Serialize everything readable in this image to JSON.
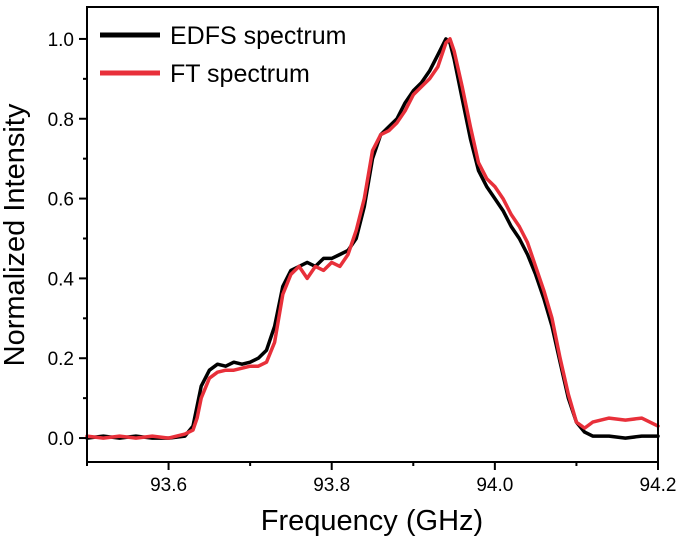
{
  "chart_data": {
    "type": "line",
    "title": "",
    "xlabel": "Frequency (GHz)",
    "ylabel": "Normalized Intensity",
    "xlim": [
      93.5,
      94.2
    ],
    "ylim": [
      -0.06,
      1.08
    ],
    "x_ticks": [
      93.6,
      93.8,
      94.0,
      94.2
    ],
    "x_tick_labels": [
      "93.6",
      "93.8",
      "94.0",
      "94.2"
    ],
    "y_ticks": [
      0.0,
      0.2,
      0.4,
      0.6,
      0.8,
      1.0
    ],
    "y_tick_labels": [
      "0.0",
      "0.2",
      "0.4",
      "0.6",
      "0.8",
      "1.0"
    ],
    "grid": false,
    "legend_position": "top-left",
    "series": [
      {
        "name": "EDFS spectrum",
        "color": "#000000",
        "x": [
          93.5,
          93.52,
          93.54,
          93.56,
          93.58,
          93.6,
          93.62,
          93.63,
          93.635,
          93.64,
          93.65,
          93.66,
          93.67,
          93.68,
          93.69,
          93.7,
          93.71,
          93.72,
          93.73,
          93.74,
          93.75,
          93.76,
          93.77,
          93.78,
          93.79,
          93.8,
          93.81,
          93.82,
          93.83,
          93.84,
          93.85,
          93.86,
          93.87,
          93.88,
          93.89,
          93.9,
          93.91,
          93.92,
          93.93,
          93.94,
          93.945,
          93.95,
          93.96,
          93.97,
          93.98,
          93.99,
          94.0,
          94.01,
          94.02,
          94.03,
          94.04,
          94.05,
          94.06,
          94.07,
          94.08,
          94.09,
          94.1,
          94.11,
          94.12,
          94.14,
          94.16,
          94.18,
          94.2
        ],
        "values": [
          0.0,
          0.005,
          0.0,
          0.005,
          0.0,
          0.0,
          0.005,
          0.03,
          0.08,
          0.13,
          0.17,
          0.185,
          0.18,
          0.19,
          0.185,
          0.19,
          0.2,
          0.22,
          0.28,
          0.38,
          0.42,
          0.43,
          0.44,
          0.43,
          0.45,
          0.45,
          0.46,
          0.47,
          0.5,
          0.58,
          0.7,
          0.76,
          0.78,
          0.8,
          0.84,
          0.87,
          0.89,
          0.92,
          0.96,
          1.0,
          0.99,
          0.95,
          0.85,
          0.75,
          0.67,
          0.63,
          0.6,
          0.57,
          0.53,
          0.5,
          0.46,
          0.41,
          0.35,
          0.28,
          0.19,
          0.1,
          0.04,
          0.015,
          0.005,
          0.005,
          0.0,
          0.005,
          0.005
        ]
      },
      {
        "name": "FT spectrum",
        "color": "#e8303a",
        "x": [
          93.5,
          93.52,
          93.54,
          93.56,
          93.58,
          93.6,
          93.62,
          93.63,
          93.635,
          93.64,
          93.65,
          93.66,
          93.67,
          93.68,
          93.69,
          93.7,
          93.71,
          93.72,
          93.73,
          93.74,
          93.75,
          93.76,
          93.77,
          93.78,
          93.79,
          93.8,
          93.81,
          93.82,
          93.83,
          93.84,
          93.85,
          93.86,
          93.87,
          93.88,
          93.89,
          93.9,
          93.91,
          93.92,
          93.93,
          93.94,
          93.945,
          93.95,
          93.96,
          93.97,
          93.98,
          93.99,
          94.0,
          94.01,
          94.02,
          94.03,
          94.04,
          94.05,
          94.06,
          94.07,
          94.08,
          94.09,
          94.1,
          94.11,
          94.12,
          94.14,
          94.16,
          94.18,
          94.2
        ],
        "values": [
          0.005,
          0.0,
          0.005,
          0.0,
          0.005,
          0.0,
          0.01,
          0.02,
          0.05,
          0.1,
          0.15,
          0.165,
          0.17,
          0.17,
          0.175,
          0.18,
          0.18,
          0.19,
          0.24,
          0.36,
          0.41,
          0.43,
          0.4,
          0.43,
          0.42,
          0.44,
          0.43,
          0.46,
          0.52,
          0.6,
          0.72,
          0.76,
          0.77,
          0.79,
          0.82,
          0.86,
          0.88,
          0.9,
          0.93,
          0.99,
          1.0,
          0.97,
          0.88,
          0.78,
          0.69,
          0.65,
          0.63,
          0.6,
          0.56,
          0.53,
          0.49,
          0.43,
          0.37,
          0.3,
          0.2,
          0.11,
          0.04,
          0.025,
          0.04,
          0.05,
          0.045,
          0.05,
          0.03
        ]
      }
    ]
  }
}
